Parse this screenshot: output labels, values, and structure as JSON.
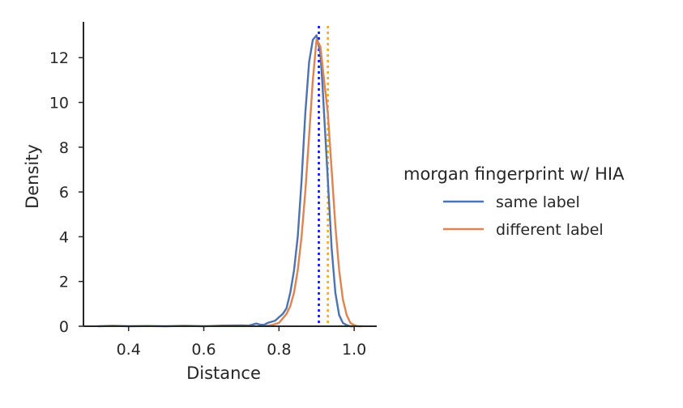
{
  "chart_data": {
    "type": "line",
    "title": "",
    "xlabel": "Distance",
    "ylabel": "Density",
    "xlim": [
      0.28,
      1.06
    ],
    "ylim": [
      0,
      13.6
    ],
    "x_ticks": [
      "0.4",
      "0.6",
      "0.8",
      "1.0"
    ],
    "y_ticks": [
      "0",
      "2",
      "4",
      "6",
      "8",
      "10",
      "12"
    ],
    "grid": false,
    "legend": {
      "title": "morgan fingerprint w/ HIA",
      "placement": "right-outside"
    },
    "series": [
      {
        "name": "same label",
        "color": "#4c72b0",
        "x": [
          0.32,
          0.36,
          0.4,
          0.45,
          0.5,
          0.55,
          0.6,
          0.65,
          0.7,
          0.72,
          0.74,
          0.75,
          0.76,
          0.77,
          0.78,
          0.79,
          0.8,
          0.81,
          0.82,
          0.83,
          0.84,
          0.85,
          0.86,
          0.87,
          0.88,
          0.89,
          0.9,
          0.91,
          0.915,
          0.92,
          0.93,
          0.94,
          0.95,
          0.96,
          0.97,
          0.98,
          0.99,
          1.0
        ],
        "values": [
          0.0,
          0.02,
          0.0,
          0.01,
          0.0,
          0.02,
          0.0,
          0.03,
          0.04,
          0.03,
          0.12,
          0.07,
          0.06,
          0.15,
          0.2,
          0.25,
          0.4,
          0.55,
          0.8,
          1.5,
          2.5,
          4.0,
          6.5,
          9.5,
          11.8,
          12.8,
          13.0,
          12.2,
          11.0,
          9.5,
          6.5,
          3.5,
          1.5,
          0.5,
          0.15,
          0.05,
          0.0,
          0.0
        ]
      },
      {
        "name": "different label",
        "color": "#dd8452",
        "x": [
          0.76,
          0.78,
          0.8,
          0.81,
          0.82,
          0.83,
          0.84,
          0.85,
          0.86,
          0.87,
          0.88,
          0.89,
          0.9,
          0.91,
          0.92,
          0.93,
          0.94,
          0.95,
          0.96,
          0.97,
          0.98,
          0.99,
          1.0,
          1.01,
          1.02
        ],
        "values": [
          0.0,
          0.05,
          0.15,
          0.35,
          0.55,
          0.9,
          1.5,
          2.5,
          4.0,
          6.0,
          8.5,
          11.0,
          12.8,
          12.5,
          11.0,
          9.5,
          7.0,
          4.5,
          2.5,
          1.2,
          0.5,
          0.15,
          0.05,
          0.0,
          0.0
        ]
      }
    ],
    "reference_lines": [
      {
        "x": 0.906,
        "color": "#0000ff",
        "style": "dotted"
      },
      {
        "x": 0.93,
        "color": "#ffa500",
        "style": "dotted"
      }
    ]
  }
}
